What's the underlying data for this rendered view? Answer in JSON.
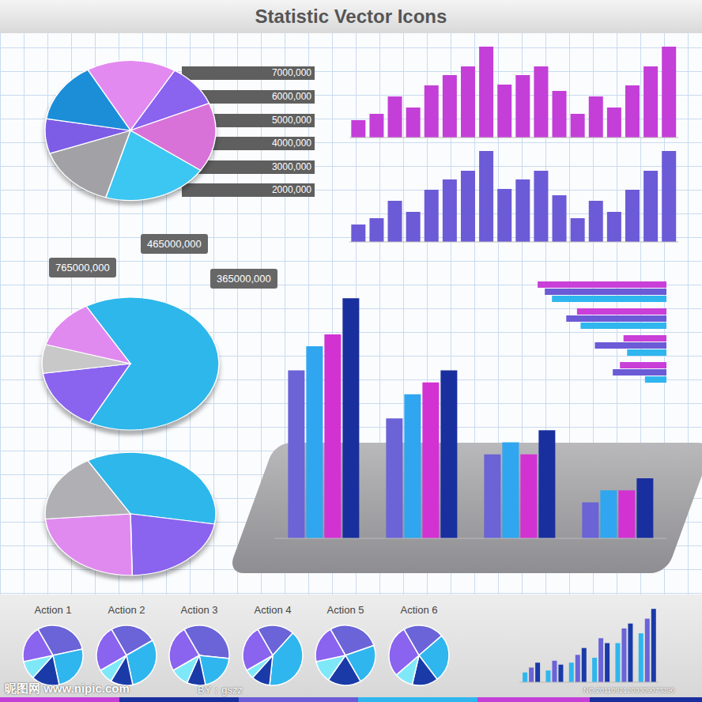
{
  "title": "Statistic Vector Icons",
  "chart_data": [
    {
      "type": "pie",
      "values": [
        17,
        10,
        16,
        20,
        15,
        8,
        14
      ],
      "colors": [
        "#e28af0",
        "#8a63ef",
        "#d872d9",
        "#3cc6f2",
        "#a2a2a6",
        "#7d5ce6",
        "#1c8ed8"
      ],
      "annotations": [
        "7000,000",
        "6000,000",
        "5000,000",
        "4000,000",
        "3000,000",
        "2000,000"
      ]
    },
    {
      "type": "bar",
      "values": [
        22,
        30,
        52,
        38,
        66,
        79,
        90,
        115,
        67,
        79,
        90,
        59,
        30,
        52,
        38,
        66,
        90,
        115
      ],
      "color": "#c33fd8",
      "ylim": [
        0,
        120
      ],
      "tick_labels": false
    },
    {
      "type": "bar",
      "values": [
        22,
        30,
        52,
        38,
        66,
        79,
        90,
        115,
        67,
        79,
        90,
        59,
        30,
        52,
        38,
        66,
        90,
        115
      ],
      "color": "#6b5bd6",
      "ylim": [
        0,
        120
      ],
      "tick_labels": false
    },
    {
      "type": "pie",
      "values": [
        66,
        15,
        7,
        12
      ],
      "colors": [
        "#2eb7ea",
        "#8a63ef",
        "#c8c8c8",
        "#e08af0"
      ],
      "annotations": [
        "765000,000",
        "465000,000",
        "365000,000"
      ]
    },
    {
      "type": "pie",
      "values": [
        36,
        22,
        24,
        18
      ],
      "colors": [
        "#2eb7ea",
        "#8a63ef",
        "#e08af0",
        "#b0b0b4"
      ]
    },
    {
      "type": "bar",
      "series": [
        {
          "color": "#6b63d6",
          "values": [
            70,
            50,
            35,
            15
          ]
        },
        {
          "color": "#2fa6ef",
          "values": [
            80,
            60,
            40,
            20
          ]
        },
        {
          "color": "#d232d2",
          "values": [
            85,
            65,
            35,
            20
          ]
        },
        {
          "color": "#1a2f9e",
          "values": [
            100,
            70,
            45,
            25
          ]
        }
      ],
      "ylim": [
        0,
        110
      ],
      "tick_labels": false
    },
    {
      "type": "bar",
      "orientation": "horizontal",
      "series": [
        {
          "color": "#c93fd8",
          "values": [
            180,
            125,
            60,
            65
          ]
        },
        {
          "color": "#6b5bd6",
          "values": [
            170,
            140,
            100,
            75
          ]
        },
        {
          "color": "#2fb6ee",
          "values": [
            160,
            120,
            55,
            30
          ]
        }
      ],
      "xlim": [
        0,
        200
      ],
      "tick_labels": false
    },
    {
      "type": "pie",
      "title": "Action 1",
      "values": [
        30,
        25,
        15,
        10,
        20
      ],
      "colors": [
        "#6a64d8",
        "#2fb6ee",
        "#1a3aa8",
        "#7fe8f8",
        "#8a63ef"
      ]
    },
    {
      "type": "pie",
      "title": "Action 2",
      "values": [
        25,
        30,
        12,
        8,
        25
      ],
      "colors": [
        "#6a64d8",
        "#2fb6ee",
        "#1a3aa8",
        "#7fe8f8",
        "#8a63ef"
      ]
    },
    {
      "type": "pie",
      "title": "Action 3",
      "values": [
        35,
        20,
        10,
        10,
        25
      ],
      "colors": [
        "#6a64d8",
        "#2fb6ee",
        "#1a3aa8",
        "#7fe8f8",
        "#8a63ef"
      ]
    },
    {
      "type": "pie",
      "title": "Action 4",
      "values": [
        20,
        40,
        10,
        5,
        25
      ],
      "colors": [
        "#6a64d8",
        "#2fb6ee",
        "#1a3aa8",
        "#7fe8f8",
        "#8a63ef"
      ]
    },
    {
      "type": "pie",
      "title": "Action 5",
      "values": [
        28,
        22,
        18,
        12,
        20
      ],
      "colors": [
        "#6a64d8",
        "#2fb6ee",
        "#1a3aa8",
        "#7fe8f8",
        "#8a63ef"
      ]
    },
    {
      "type": "pie",
      "title": "Action 6",
      "values": [
        22,
        26,
        14,
        10,
        28
      ],
      "colors": [
        "#6a64d8",
        "#2fb6ee",
        "#1a3aa8",
        "#7fe8f8",
        "#8a63ef"
      ]
    },
    {
      "type": "bar",
      "series": [
        {
          "color": "#2fb6ee",
          "values": [
            10,
            12,
            20,
            25,
            40,
            50
          ]
        },
        {
          "color": "#6a64d8",
          "values": [
            15,
            22,
            28,
            45,
            55,
            65
          ]
        },
        {
          "color": "#1a3aa8",
          "values": [
            20,
            18,
            35,
            40,
            60,
            75
          ]
        }
      ],
      "ylim": [
        0,
        80
      ],
      "tick_labels": false
    }
  ],
  "watermark": [
    "昵图网 www.nipic.com",
    "BY：gszz",
    "NO:20110921203309073396"
  ]
}
